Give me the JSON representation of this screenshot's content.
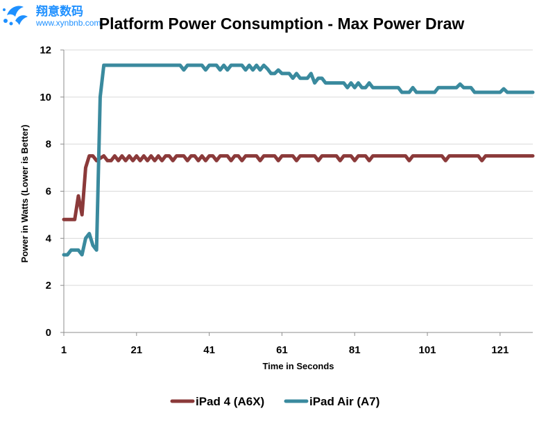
{
  "watermark": {
    "line1": "翔意数码",
    "line2": "www.xynbnb.com",
    "color": "#1e90ff"
  },
  "chart_data": {
    "type": "line",
    "title": "Platform Power Consumption - Max Power Draw",
    "xlabel": "Time in Seconds",
    "ylabel": "Power in Watts (Lower is Better)",
    "xlim": [
      1,
      130
    ],
    "ylim": [
      0,
      12
    ],
    "x_ticks": [
      1,
      21,
      41,
      61,
      81,
      101,
      121
    ],
    "y_ticks": [
      0,
      2,
      4,
      6,
      8,
      10,
      12
    ],
    "grid": "horizontal",
    "legend_position": "bottom",
    "series": [
      {
        "name": "iPad 4 (A6X)",
        "color": "#8b3a3a",
        "points": [
          [
            1,
            4.8
          ],
          [
            2,
            4.8
          ],
          [
            3,
            4.8
          ],
          [
            4,
            4.8
          ],
          [
            5,
            5.8
          ],
          [
            6,
            5.0
          ],
          [
            7,
            7.0
          ],
          [
            8,
            7.5
          ],
          [
            9,
            7.5
          ],
          [
            10,
            7.3
          ],
          [
            11,
            7.4
          ],
          [
            12,
            7.5
          ],
          [
            13,
            7.3
          ],
          [
            14,
            7.3
          ],
          [
            15,
            7.5
          ],
          [
            16,
            7.3
          ],
          [
            17,
            7.5
          ],
          [
            18,
            7.3
          ],
          [
            19,
            7.5
          ],
          [
            20,
            7.3
          ],
          [
            21,
            7.5
          ],
          [
            22,
            7.3
          ],
          [
            23,
            7.5
          ],
          [
            24,
            7.3
          ],
          [
            25,
            7.5
          ],
          [
            26,
            7.3
          ],
          [
            27,
            7.5
          ],
          [
            28,
            7.3
          ],
          [
            29,
            7.5
          ],
          [
            30,
            7.5
          ],
          [
            31,
            7.3
          ],
          [
            32,
            7.5
          ],
          [
            33,
            7.5
          ],
          [
            34,
            7.5
          ],
          [
            35,
            7.3
          ],
          [
            36,
            7.5
          ],
          [
            37,
            7.5
          ],
          [
            38,
            7.3
          ],
          [
            39,
            7.5
          ],
          [
            40,
            7.3
          ],
          [
            41,
            7.5
          ],
          [
            42,
            7.5
          ],
          [
            43,
            7.3
          ],
          [
            44,
            7.5
          ],
          [
            45,
            7.5
          ],
          [
            46,
            7.5
          ],
          [
            47,
            7.3
          ],
          [
            48,
            7.5
          ],
          [
            49,
            7.5
          ],
          [
            50,
            7.3
          ],
          [
            51,
            7.5
          ],
          [
            52,
            7.5
          ],
          [
            53,
            7.5
          ],
          [
            54,
            7.5
          ],
          [
            55,
            7.3
          ],
          [
            56,
            7.5
          ],
          [
            57,
            7.5
          ],
          [
            58,
            7.5
          ],
          [
            59,
            7.5
          ],
          [
            60,
            7.3
          ],
          [
            61,
            7.5
          ],
          [
            62,
            7.5
          ],
          [
            63,
            7.5
          ],
          [
            64,
            7.5
          ],
          [
            65,
            7.3
          ],
          [
            66,
            7.5
          ],
          [
            67,
            7.5
          ],
          [
            68,
            7.5
          ],
          [
            69,
            7.5
          ],
          [
            70,
            7.5
          ],
          [
            71,
            7.3
          ],
          [
            72,
            7.5
          ],
          [
            73,
            7.5
          ],
          [
            74,
            7.5
          ],
          [
            75,
            7.5
          ],
          [
            76,
            7.5
          ],
          [
            77,
            7.3
          ],
          [
            78,
            7.5
          ],
          [
            79,
            7.5
          ],
          [
            80,
            7.5
          ],
          [
            81,
            7.3
          ],
          [
            82,
            7.5
          ],
          [
            83,
            7.5
          ],
          [
            84,
            7.5
          ],
          [
            85,
            7.3
          ],
          [
            86,
            7.5
          ],
          [
            87,
            7.5
          ],
          [
            88,
            7.5
          ],
          [
            89,
            7.5
          ],
          [
            90,
            7.5
          ],
          [
            91,
            7.5
          ],
          [
            92,
            7.5
          ],
          [
            93,
            7.5
          ],
          [
            94,
            7.5
          ],
          [
            95,
            7.5
          ],
          [
            96,
            7.3
          ],
          [
            97,
            7.5
          ],
          [
            98,
            7.5
          ],
          [
            99,
            7.5
          ],
          [
            100,
            7.5
          ],
          [
            101,
            7.5
          ],
          [
            102,
            7.5
          ],
          [
            103,
            7.5
          ],
          [
            104,
            7.5
          ],
          [
            105,
            7.5
          ],
          [
            106,
            7.3
          ],
          [
            107,
            7.5
          ],
          [
            108,
            7.5
          ],
          [
            109,
            7.5
          ],
          [
            110,
            7.5
          ],
          [
            111,
            7.5
          ],
          [
            112,
            7.5
          ],
          [
            113,
            7.5
          ],
          [
            114,
            7.5
          ],
          [
            115,
            7.5
          ],
          [
            116,
            7.3
          ],
          [
            117,
            7.5
          ],
          [
            118,
            7.5
          ],
          [
            119,
            7.5
          ],
          [
            120,
            7.5
          ],
          [
            121,
            7.5
          ],
          [
            122,
            7.5
          ],
          [
            123,
            7.5
          ],
          [
            124,
            7.5
          ],
          [
            125,
            7.5
          ],
          [
            126,
            7.5
          ],
          [
            127,
            7.5
          ],
          [
            128,
            7.5
          ],
          [
            129,
            7.5
          ],
          [
            130,
            7.5
          ]
        ]
      },
      {
        "name": "iPad Air (A7)",
        "color": "#3a8a9e",
        "points": [
          [
            1,
            3.3
          ],
          [
            2,
            3.3
          ],
          [
            3,
            3.5
          ],
          [
            4,
            3.5
          ],
          [
            5,
            3.5
          ],
          [
            6,
            3.3
          ],
          [
            7,
            4.0
          ],
          [
            8,
            4.2
          ],
          [
            9,
            3.7
          ],
          [
            10,
            3.5
          ],
          [
            11,
            10.0
          ],
          [
            12,
            11.35
          ],
          [
            13,
            11.35
          ],
          [
            14,
            11.35
          ],
          [
            15,
            11.35
          ],
          [
            16,
            11.35
          ],
          [
            17,
            11.35
          ],
          [
            18,
            11.35
          ],
          [
            19,
            11.35
          ],
          [
            20,
            11.35
          ],
          [
            21,
            11.35
          ],
          [
            22,
            11.35
          ],
          [
            23,
            11.35
          ],
          [
            24,
            11.35
          ],
          [
            25,
            11.35
          ],
          [
            26,
            11.35
          ],
          [
            27,
            11.35
          ],
          [
            28,
            11.35
          ],
          [
            29,
            11.35
          ],
          [
            30,
            11.35
          ],
          [
            31,
            11.35
          ],
          [
            32,
            11.35
          ],
          [
            33,
            11.35
          ],
          [
            34,
            11.15
          ],
          [
            35,
            11.35
          ],
          [
            36,
            11.35
          ],
          [
            37,
            11.35
          ],
          [
            38,
            11.35
          ],
          [
            39,
            11.35
          ],
          [
            40,
            11.15
          ],
          [
            41,
            11.35
          ],
          [
            42,
            11.35
          ],
          [
            43,
            11.35
          ],
          [
            44,
            11.15
          ],
          [
            45,
            11.35
          ],
          [
            46,
            11.15
          ],
          [
            47,
            11.35
          ],
          [
            48,
            11.35
          ],
          [
            49,
            11.35
          ],
          [
            50,
            11.35
          ],
          [
            51,
            11.15
          ],
          [
            52,
            11.35
          ],
          [
            53,
            11.15
          ],
          [
            54,
            11.35
          ],
          [
            55,
            11.15
          ],
          [
            56,
            11.35
          ],
          [
            57,
            11.2
          ],
          [
            58,
            11.0
          ],
          [
            59,
            11.0
          ],
          [
            60,
            11.15
          ],
          [
            61,
            11.0
          ],
          [
            62,
            11.0
          ],
          [
            63,
            11.0
          ],
          [
            64,
            10.8
          ],
          [
            65,
            11.0
          ],
          [
            66,
            10.8
          ],
          [
            67,
            10.8
          ],
          [
            68,
            10.8
          ],
          [
            69,
            11.0
          ],
          [
            70,
            10.6
          ],
          [
            71,
            10.8
          ],
          [
            72,
            10.8
          ],
          [
            73,
            10.6
          ],
          [
            74,
            10.6
          ],
          [
            75,
            10.6
          ],
          [
            76,
            10.6
          ],
          [
            77,
            10.6
          ],
          [
            78,
            10.6
          ],
          [
            79,
            10.4
          ],
          [
            80,
            10.6
          ],
          [
            81,
            10.4
          ],
          [
            82,
            10.6
          ],
          [
            83,
            10.4
          ],
          [
            84,
            10.4
          ],
          [
            85,
            10.6
          ],
          [
            86,
            10.4
          ],
          [
            87,
            10.4
          ],
          [
            88,
            10.4
          ],
          [
            89,
            10.4
          ],
          [
            90,
            10.4
          ],
          [
            91,
            10.4
          ],
          [
            92,
            10.4
          ],
          [
            93,
            10.4
          ],
          [
            94,
            10.2
          ],
          [
            95,
            10.2
          ],
          [
            96,
            10.2
          ],
          [
            97,
            10.4
          ],
          [
            98,
            10.2
          ],
          [
            99,
            10.2
          ],
          [
            100,
            10.2
          ],
          [
            101,
            10.2
          ],
          [
            102,
            10.2
          ],
          [
            103,
            10.2
          ],
          [
            104,
            10.4
          ],
          [
            105,
            10.4
          ],
          [
            106,
            10.4
          ],
          [
            107,
            10.4
          ],
          [
            108,
            10.4
          ],
          [
            109,
            10.4
          ],
          [
            110,
            10.55
          ],
          [
            111,
            10.4
          ],
          [
            112,
            10.4
          ],
          [
            113,
            10.4
          ],
          [
            114,
            10.2
          ],
          [
            115,
            10.2
          ],
          [
            116,
            10.2
          ],
          [
            117,
            10.2
          ],
          [
            118,
            10.2
          ],
          [
            119,
            10.2
          ],
          [
            120,
            10.2
          ],
          [
            121,
            10.2
          ],
          [
            122,
            10.35
          ],
          [
            123,
            10.2
          ],
          [
            124,
            10.2
          ],
          [
            125,
            10.2
          ],
          [
            126,
            10.2
          ],
          [
            127,
            10.2
          ],
          [
            128,
            10.2
          ],
          [
            129,
            10.2
          ],
          [
            130,
            10.2
          ]
        ]
      }
    ]
  }
}
